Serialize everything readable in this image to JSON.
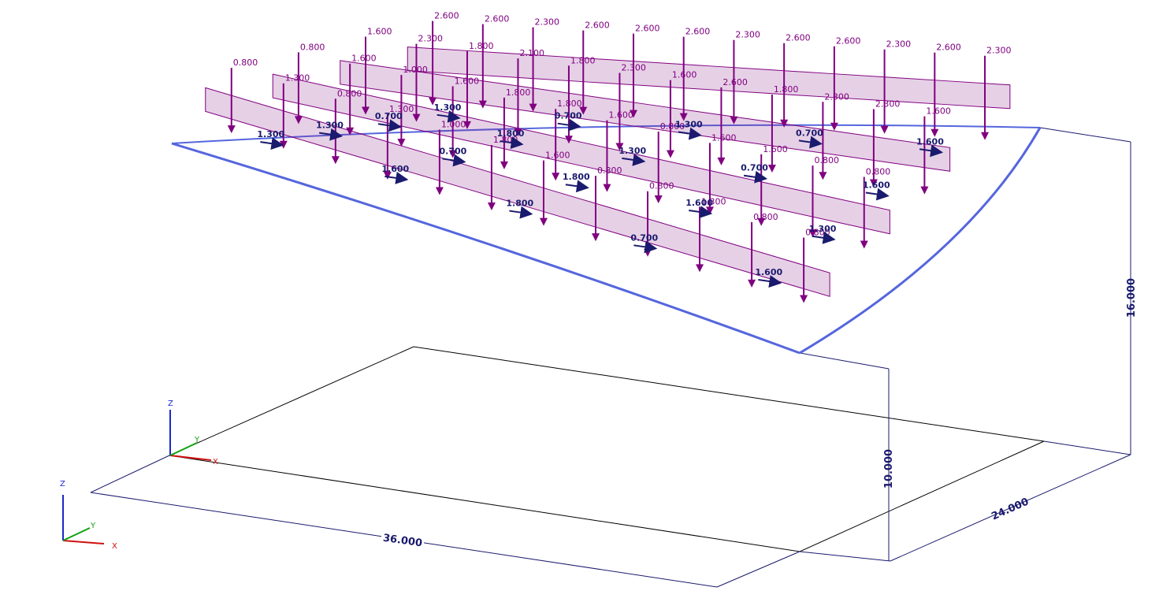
{
  "dimensions": {
    "length": "36.000",
    "width": "24.000",
    "height_low": "10.000",
    "height_high": "16.000"
  },
  "axes": {
    "main": {
      "x": "X",
      "y": "Y",
      "z": "Z"
    },
    "mini": {
      "x": "X",
      "y": "Y",
      "z": "Z"
    }
  },
  "loads": {
    "vertical": [
      "2.600",
      "2.600",
      "2.300",
      "2.600",
      "2.600",
      "2.600",
      "2.300",
      "2.600",
      "2.600",
      "2.300",
      "2.600",
      "2.300",
      "1.600",
      "2.300",
      "1.800",
      "2.100",
      "1.800",
      "2.300",
      "1.600",
      "2.600",
      "1.800",
      "2.300",
      "2.300",
      "1.600",
      "0.800",
      "1.600",
      "1.000",
      "1.600",
      "1.800",
      "1.800",
      "1.600",
      "0.800",
      "1.600",
      "1.600",
      "0.800",
      "0.800",
      "0.800",
      "1.300",
      "0.800",
      "1.300",
      "1.000",
      "1.800",
      "1.600",
      "0.800",
      "0.800",
      "1.300",
      "0.800",
      "0.800"
    ],
    "horizontal": [
      "1.300",
      "0.700",
      "1.300",
      "0.700",
      "1.600",
      "0.700",
      "1.800",
      "1.300",
      "0.700",
      "1.600",
      "1.300",
      "0.700",
      "1.800",
      "1.600",
      "1.300",
      "1.300",
      "1.600",
      "1.800",
      "0.700",
      "1.600"
    ]
  }
}
